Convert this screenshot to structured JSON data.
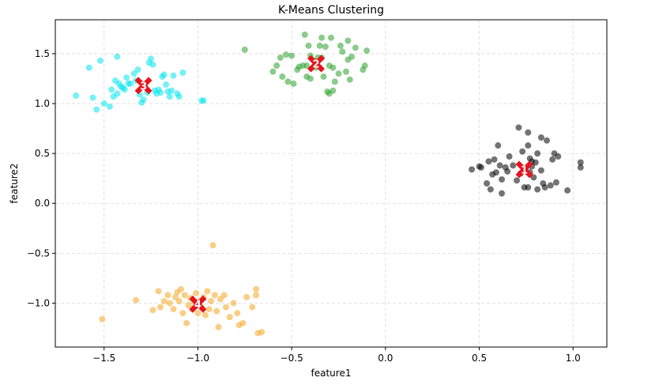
{
  "chart_data": {
    "type": "scatter",
    "title": "K-Means Clustering",
    "xlabel": "feature1",
    "ylabel": "feature2",
    "xlim": [
      -1.76,
      1.18
    ],
    "ylim": [
      -1.44,
      1.84
    ],
    "xticks": [
      -1.5,
      -1.0,
      -0.5,
      0.0,
      0.5,
      1.0
    ],
    "xtick_labels": [
      "−1.5",
      "−1.0",
      "−0.5",
      "0.0",
      "0.5",
      "1.0"
    ],
    "yticks": [
      -1.0,
      -0.5,
      0.0,
      0.5,
      1.0,
      1.5
    ],
    "ytick_labels": [
      "−1.0",
      "−0.5",
      "0.0",
      "0.5",
      "1.0",
      "1.5"
    ],
    "grid": true,
    "series": [
      {
        "color": "#000000",
        "points": [
          [
            0.46,
            0.34
          ],
          [
            0.5,
            0.37
          ],
          [
            0.51,
            0.36
          ],
          [
            0.54,
            0.2
          ],
          [
            0.55,
            0.42
          ],
          [
            0.56,
            0.14
          ],
          [
            0.57,
            0.29
          ],
          [
            0.58,
            0.44
          ],
          [
            0.59,
            0.31
          ],
          [
            0.6,
            0.58
          ],
          [
            0.61,
            0.38
          ],
          [
            0.62,
            0.1
          ],
          [
            0.62,
            0.24
          ],
          [
            0.64,
            0.36
          ],
          [
            0.65,
            0.32
          ],
          [
            0.66,
            0.47
          ],
          [
            0.68,
            0.38
          ],
          [
            0.7,
            0.23
          ],
          [
            0.71,
            0.76
          ],
          [
            0.72,
            0.3
          ],
          [
            0.73,
            0.52
          ],
          [
            0.74,
            0.35
          ],
          [
            0.74,
            0.16
          ],
          [
            0.76,
            0.71
          ],
          [
            0.76,
            0.16
          ],
          [
            0.76,
            0.58
          ],
          [
            0.77,
            0.45
          ],
          [
            0.77,
            0.31
          ],
          [
            0.78,
            0.42
          ],
          [
            0.78,
            0.37
          ],
          [
            0.79,
            0.26
          ],
          [
            0.8,
            0.41
          ],
          [
            0.81,
            0.5
          ],
          [
            0.81,
            0.14
          ],
          [
            0.83,
            0.66
          ],
          [
            0.83,
            0.33
          ],
          [
            0.84,
            0.2
          ],
          [
            0.85,
            0.16
          ],
          [
            0.86,
            0.63
          ],
          [
            0.88,
            0.18
          ],
          [
            0.89,
            0.44
          ],
          [
            0.9,
            0.5
          ],
          [
            0.91,
            0.21
          ],
          [
            0.92,
            0.47
          ],
          [
            0.97,
            0.13
          ],
          [
            1.04,
            0.41
          ],
          [
            1.04,
            0.36
          ]
        ]
      },
      {
        "color": "#2ca02c",
        "points": [
          [
            -0.75,
            1.54
          ],
          [
            -0.6,
            1.32
          ],
          [
            -0.58,
            1.38
          ],
          [
            -0.56,
            1.46
          ],
          [
            -0.55,
            1.27
          ],
          [
            -0.53,
            1.49
          ],
          [
            -0.52,
            1.22
          ],
          [
            -0.5,
            1.48
          ],
          [
            -0.49,
            1.2
          ],
          [
            -0.47,
            1.34
          ],
          [
            -0.46,
            1.37
          ],
          [
            -0.44,
            1.38
          ],
          [
            -0.43,
            1.69
          ],
          [
            -0.42,
            1.38
          ],
          [
            -0.42,
            1.27
          ],
          [
            -0.41,
            1.58
          ],
          [
            -0.4,
            1.48
          ],
          [
            -0.4,
            1.25
          ],
          [
            -0.38,
            1.43
          ],
          [
            -0.37,
            1.36
          ],
          [
            -0.36,
            1.46
          ],
          [
            -0.35,
            1.58
          ],
          [
            -0.34,
            1.46
          ],
          [
            -0.34,
            1.66
          ],
          [
            -0.33,
            1.27
          ],
          [
            -0.32,
            1.57
          ],
          [
            -0.31,
            1.12
          ],
          [
            -0.3,
            1.38
          ],
          [
            -0.3,
            1.1
          ],
          [
            -0.29,
            1.66
          ],
          [
            -0.28,
            1.36
          ],
          [
            -0.28,
            1.13
          ],
          [
            -0.27,
            1.22
          ],
          [
            -0.25,
            1.3
          ],
          [
            -0.24,
            1.58
          ],
          [
            -0.23,
            1.52
          ],
          [
            -0.21,
            1.32
          ],
          [
            -0.2,
            1.44
          ],
          [
            -0.2,
            1.63
          ],
          [
            -0.19,
            1.24
          ],
          [
            -0.18,
            1.47
          ],
          [
            -0.16,
            1.56
          ],
          [
            -0.12,
            1.34
          ],
          [
            -0.11,
            1.38
          ],
          [
            -0.1,
            1.53
          ]
        ]
      },
      {
        "color": "#00e5ee",
        "points": [
          [
            -1.65,
            1.08
          ],
          [
            -1.58,
            1.36
          ],
          [
            -1.56,
            1.06
          ],
          [
            -1.54,
            0.94
          ],
          [
            -1.52,
            1.43
          ],
          [
            -1.5,
            1.0
          ],
          [
            -1.47,
            0.97
          ],
          [
            -1.46,
            1.14
          ],
          [
            -1.45,
            1.07
          ],
          [
            -1.44,
            1.23
          ],
          [
            -1.43,
            1.47
          ],
          [
            -1.43,
            1.1
          ],
          [
            -1.42,
            1.2
          ],
          [
            -1.41,
            1.17
          ],
          [
            -1.4,
            1.16
          ],
          [
            -1.39,
            1.14
          ],
          [
            -1.38,
            1.26
          ],
          [
            -1.37,
            1.2
          ],
          [
            -1.36,
            1.2
          ],
          [
            -1.34,
            1.3
          ],
          [
            -1.33,
            1.23
          ],
          [
            -1.32,
            1.34
          ],
          [
            -1.31,
            1.09
          ],
          [
            -1.3,
            1.01
          ],
          [
            -1.29,
            1.04
          ],
          [
            -1.28,
            1.17
          ],
          [
            -1.27,
            1.11
          ],
          [
            -1.26,
            1.41
          ],
          [
            -1.25,
            1.45
          ],
          [
            -1.24,
            1.39
          ],
          [
            -1.23,
            1.13
          ],
          [
            -1.22,
            1.1
          ],
          [
            -1.21,
            1.14
          ],
          [
            -1.2,
            1.11
          ],
          [
            -1.19,
            1.27
          ],
          [
            -1.18,
            1.29
          ],
          [
            -1.17,
            1.19
          ],
          [
            -1.16,
            1.12
          ],
          [
            -1.15,
            1.07
          ],
          [
            -1.14,
            1.13
          ],
          [
            -1.13,
            1.28
          ],
          [
            -1.11,
            1.1
          ],
          [
            -1.1,
            1.07
          ],
          [
            -1.08,
            1.31
          ],
          [
            -0.98,
            1.03
          ],
          [
            -0.97,
            1.03
          ]
        ]
      },
      {
        "color": "#f5a623",
        "points": [
          [
            -1.51,
            -1.16
          ],
          [
            -1.33,
            -0.97
          ],
          [
            -1.24,
            -1.07
          ],
          [
            -1.21,
            -0.88
          ],
          [
            -1.2,
            -1.04
          ],
          [
            -1.18,
            -0.98
          ],
          [
            -1.16,
            -0.92
          ],
          [
            -1.15,
            -1.0
          ],
          [
            -1.13,
            -1.06
          ],
          [
            -1.12,
            -0.94
          ],
          [
            -1.11,
            -0.89
          ],
          [
            -1.1,
            -0.98
          ],
          [
            -1.09,
            -0.86
          ],
          [
            -1.08,
            -1.1
          ],
          [
            -1.07,
            -0.92
          ],
          [
            -1.06,
            -1.2
          ],
          [
            -1.05,
            -1.02
          ],
          [
            -1.04,
            -0.95
          ],
          [
            -1.03,
            -1.06
          ],
          [
            -1.02,
            -0.99
          ],
          [
            -1.01,
            -0.9
          ],
          [
            -1.0,
            -1.1
          ],
          [
            -0.99,
            -0.98
          ],
          [
            -0.98,
            -1.04
          ],
          [
            -0.97,
            -0.94
          ],
          [
            -0.96,
            -1.12
          ],
          [
            -0.95,
            -0.88
          ],
          [
            -0.94,
            -1.06
          ],
          [
            -0.93,
            -0.98
          ],
          [
            -0.92,
            -0.42
          ],
          [
            -0.91,
            -0.92
          ],
          [
            -0.9,
            -1.08
          ],
          [
            -0.89,
            -1.24
          ],
          [
            -0.88,
            -0.96
          ],
          [
            -0.86,
            -0.92
          ],
          [
            -0.85,
            -1.04
          ],
          [
            -0.83,
            -1.14
          ],
          [
            -0.81,
            -1.0
          ],
          [
            -0.79,
            -1.1
          ],
          [
            -0.78,
            -1.22
          ],
          [
            -0.76,
            -1.2
          ],
          [
            -0.74,
            -0.94
          ],
          [
            -0.71,
            -1.04
          ],
          [
            -0.69,
            -0.86
          ],
          [
            -0.69,
            -0.92
          ],
          [
            -0.68,
            -1.3
          ],
          [
            -0.66,
            -1.29
          ]
        ]
      }
    ],
    "centroids": [
      {
        "label": "1",
        "x": 0.74,
        "y": 0.34
      },
      {
        "label": "2",
        "x": -0.37,
        "y": 1.4
      },
      {
        "label": "3",
        "x": -1.29,
        "y": 1.18
      },
      {
        "label": "4",
        "x": -1.0,
        "y": -1.01
      }
    ],
    "centroid_color": "#e8141c"
  }
}
